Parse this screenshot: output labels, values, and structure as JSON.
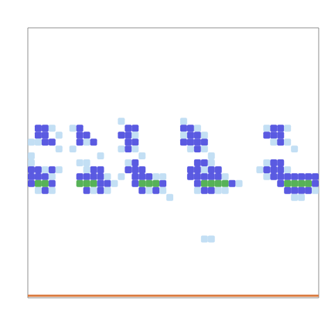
{
  "chart_data": {
    "type": "heatmap",
    "tick_labels": false,
    "grid": false,
    "xlim": [
      0,
      42
    ],
    "ylim": [
      0,
      39
    ],
    "colors": [
      "#b9d9f2",
      "#3d3ddc",
      "#3aa53a"
    ],
    "cells": [
      [
        1,
        24,
        2
      ],
      [
        2,
        24,
        2
      ],
      [
        3,
        24,
        1
      ],
      [
        1,
        23,
        2
      ],
      [
        2,
        23,
        2
      ],
      [
        4,
        23,
        1
      ],
      [
        1,
        22,
        1
      ],
      [
        2,
        22,
        2
      ],
      [
        3,
        22,
        2
      ],
      [
        4,
        21,
        1
      ],
      [
        0,
        22,
        1
      ],
      [
        0,
        18,
        2
      ],
      [
        1,
        18,
        2
      ],
      [
        2,
        18,
        1
      ],
      [
        3,
        18,
        2
      ],
      [
        4,
        18,
        1
      ],
      [
        0,
        17,
        2
      ],
      [
        1,
        17,
        2
      ],
      [
        2,
        17,
        2
      ],
      [
        3,
        17,
        1
      ],
      [
        1,
        16,
        3
      ],
      [
        2,
        16,
        3
      ],
      [
        0,
        16,
        2
      ],
      [
        3,
        16,
        2
      ],
      [
        1,
        15,
        1
      ],
      [
        2,
        15,
        2
      ],
      [
        3,
        15,
        1
      ],
      [
        0,
        19,
        1
      ],
      [
        0,
        20,
        1
      ],
      [
        6,
        24,
        1
      ],
      [
        7,
        24,
        2
      ],
      [
        8,
        23,
        2
      ],
      [
        7,
        23,
        2
      ],
      [
        8,
        22,
        1
      ],
      [
        7,
        22,
        2
      ],
      [
        9,
        22,
        2
      ],
      [
        6,
        21,
        1
      ],
      [
        10,
        20,
        1
      ],
      [
        7,
        19,
        1
      ],
      [
        8,
        19,
        1
      ],
      [
        9,
        18,
        2
      ],
      [
        10,
        18,
        2
      ],
      [
        8,
        18,
        1
      ],
      [
        7,
        17,
        2
      ],
      [
        8,
        17,
        2
      ],
      [
        9,
        17,
        2
      ],
      [
        10,
        17,
        2
      ],
      [
        11,
        17,
        1
      ],
      [
        7,
        16,
        3
      ],
      [
        8,
        16,
        3
      ],
      [
        9,
        16,
        3
      ],
      [
        10,
        16,
        2
      ],
      [
        11,
        16,
        2
      ],
      [
        12,
        16,
        1
      ],
      [
        8,
        15,
        2
      ],
      [
        9,
        15,
        1
      ],
      [
        10,
        15,
        2
      ],
      [
        11,
        15,
        1
      ],
      [
        13,
        25,
        1
      ],
      [
        14,
        24,
        2
      ],
      [
        15,
        24,
        2
      ],
      [
        13,
        23,
        2
      ],
      [
        14,
        23,
        2
      ],
      [
        15,
        23,
        1
      ],
      [
        14,
        22,
        2
      ],
      [
        15,
        22,
        2
      ],
      [
        13,
        21,
        1
      ],
      [
        14,
        21,
        2
      ],
      [
        15,
        21,
        1
      ],
      [
        16,
        20,
        1
      ],
      [
        14,
        19,
        1
      ],
      [
        15,
        19,
        2
      ],
      [
        14,
        18,
        2
      ],
      [
        15,
        18,
        2
      ],
      [
        16,
        18,
        2
      ],
      [
        13,
        17,
        1
      ],
      [
        15,
        17,
        2
      ],
      [
        16,
        17,
        2
      ],
      [
        17,
        17,
        2
      ],
      [
        18,
        17,
        1
      ],
      [
        16,
        16,
        3
      ],
      [
        17,
        16,
        3
      ],
      [
        18,
        16,
        3
      ],
      [
        19,
        16,
        2
      ],
      [
        15,
        16,
        2
      ],
      [
        16,
        15,
        2
      ],
      [
        17,
        15,
        1
      ],
      [
        18,
        15,
        2
      ],
      [
        19,
        15,
        1
      ],
      [
        20,
        14,
        1
      ],
      [
        19,
        17,
        1
      ],
      [
        22,
        25,
        1
      ],
      [
        22,
        24,
        2
      ],
      [
        23,
        24,
        2
      ],
      [
        24,
        24,
        1
      ],
      [
        22,
        23,
        1
      ],
      [
        23,
        23,
        2
      ],
      [
        24,
        23,
        2
      ],
      [
        25,
        23,
        1
      ],
      [
        22,
        22,
        2
      ],
      [
        23,
        22,
        2
      ],
      [
        24,
        22,
        2
      ],
      [
        25,
        22,
        2
      ],
      [
        23,
        21,
        1
      ],
      [
        24,
        21,
        2
      ],
      [
        25,
        21,
        1
      ],
      [
        26,
        20,
        1
      ],
      [
        24,
        19,
        2
      ],
      [
        25,
        19,
        2
      ],
      [
        26,
        19,
        1
      ],
      [
        23,
        18,
        2
      ],
      [
        24,
        18,
        2
      ],
      [
        25,
        18,
        1
      ],
      [
        26,
        18,
        2
      ],
      [
        27,
        18,
        2
      ],
      [
        23,
        17,
        2
      ],
      [
        24,
        17,
        2
      ],
      [
        25,
        17,
        2
      ],
      [
        26,
        17,
        2
      ],
      [
        27,
        17,
        2
      ],
      [
        28,
        17,
        1
      ],
      [
        25,
        16,
        3
      ],
      [
        26,
        16,
        3
      ],
      [
        27,
        16,
        3
      ],
      [
        28,
        16,
        3
      ],
      [
        24,
        16,
        2
      ],
      [
        29,
        16,
        2
      ],
      [
        24,
        15,
        1
      ],
      [
        25,
        15,
        2
      ],
      [
        26,
        15,
        2
      ],
      [
        27,
        15,
        1
      ],
      [
        28,
        15,
        1
      ],
      [
        30,
        16,
        1
      ],
      [
        25,
        8,
        1
      ],
      [
        26,
        8,
        1
      ],
      [
        34,
        24,
        1
      ],
      [
        35,
        24,
        2
      ],
      [
        36,
        24,
        2
      ],
      [
        37,
        24,
        1
      ],
      [
        34,
        23,
        2
      ],
      [
        35,
        23,
        2
      ],
      [
        36,
        23,
        2
      ],
      [
        35,
        22,
        1
      ],
      [
        36,
        22,
        2
      ],
      [
        37,
        22,
        1
      ],
      [
        38,
        21,
        1
      ],
      [
        34,
        19,
        1
      ],
      [
        35,
        19,
        2
      ],
      [
        36,
        19,
        2
      ],
      [
        33,
        18,
        1
      ],
      [
        34,
        18,
        2
      ],
      [
        35,
        18,
        2
      ],
      [
        36,
        18,
        2
      ],
      [
        37,
        18,
        1
      ],
      [
        34,
        17,
        1
      ],
      [
        35,
        17,
        2
      ],
      [
        36,
        17,
        2
      ],
      [
        37,
        17,
        2
      ],
      [
        38,
        17,
        2
      ],
      [
        39,
        17,
        2
      ],
      [
        40,
        17,
        2
      ],
      [
        41,
        17,
        2
      ],
      [
        36,
        16,
        2
      ],
      [
        37,
        16,
        3
      ],
      [
        38,
        16,
        3
      ],
      [
        39,
        16,
        3
      ],
      [
        40,
        16,
        3
      ],
      [
        41,
        16,
        2
      ],
      [
        37,
        15,
        2
      ],
      [
        38,
        15,
        2
      ],
      [
        39,
        15,
        2
      ],
      [
        40,
        15,
        2
      ],
      [
        41,
        15,
        1
      ],
      [
        38,
        14,
        1
      ],
      [
        39,
        14,
        1
      ]
    ],
    "series": [
      {
        "type": "line",
        "color": "#d9773a",
        "x": [
          0,
          42
        ],
        "values": [
          0.3,
          0.3
        ]
      }
    ]
  }
}
